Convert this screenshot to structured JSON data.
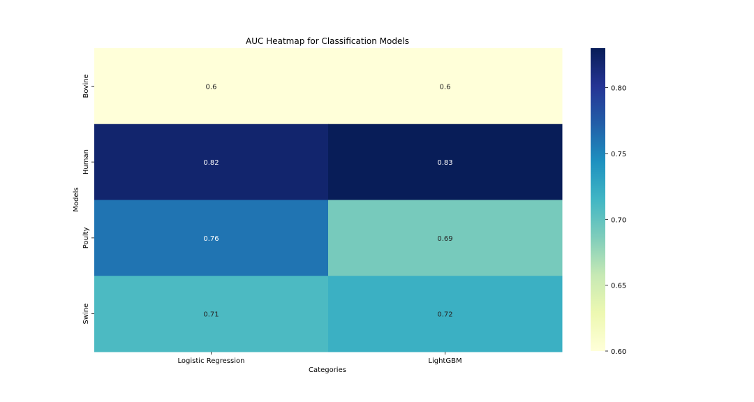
{
  "chart_data": {
    "type": "heatmap",
    "title": "AUC Heatmap for Classification Models",
    "xlabel": "Categories",
    "ylabel": "Models",
    "x_categories": [
      "Logistic Regression",
      "LightGBM"
    ],
    "y_categories": [
      "Bovine",
      "Human",
      "Poulty",
      "Swine"
    ],
    "values": [
      [
        0.6,
        0.6
      ],
      [
        0.82,
        0.83
      ],
      [
        0.76,
        0.69
      ],
      [
        0.71,
        0.72
      ]
    ],
    "cell_labels": [
      [
        "0.6",
        "0.6"
      ],
      [
        "0.82",
        "0.83"
      ],
      [
        "0.76",
        "0.69"
      ],
      [
        "0.71",
        "0.72"
      ]
    ],
    "colormap": "YlGnBu",
    "colorbar": {
      "range": [
        0.6,
        0.83
      ],
      "ticks": [
        0.6,
        0.65,
        0.7,
        0.75,
        0.8
      ],
      "tick_labels": [
        "0.60",
        "0.65",
        "0.70",
        "0.75",
        "0.80"
      ]
    },
    "colormap_stops": [
      "#ffffd9",
      "#edf8b1",
      "#c7e9b4",
      "#7fcdbb",
      "#41b6c4",
      "#1d91c0",
      "#225ea8",
      "#253494",
      "#081d58"
    ]
  }
}
